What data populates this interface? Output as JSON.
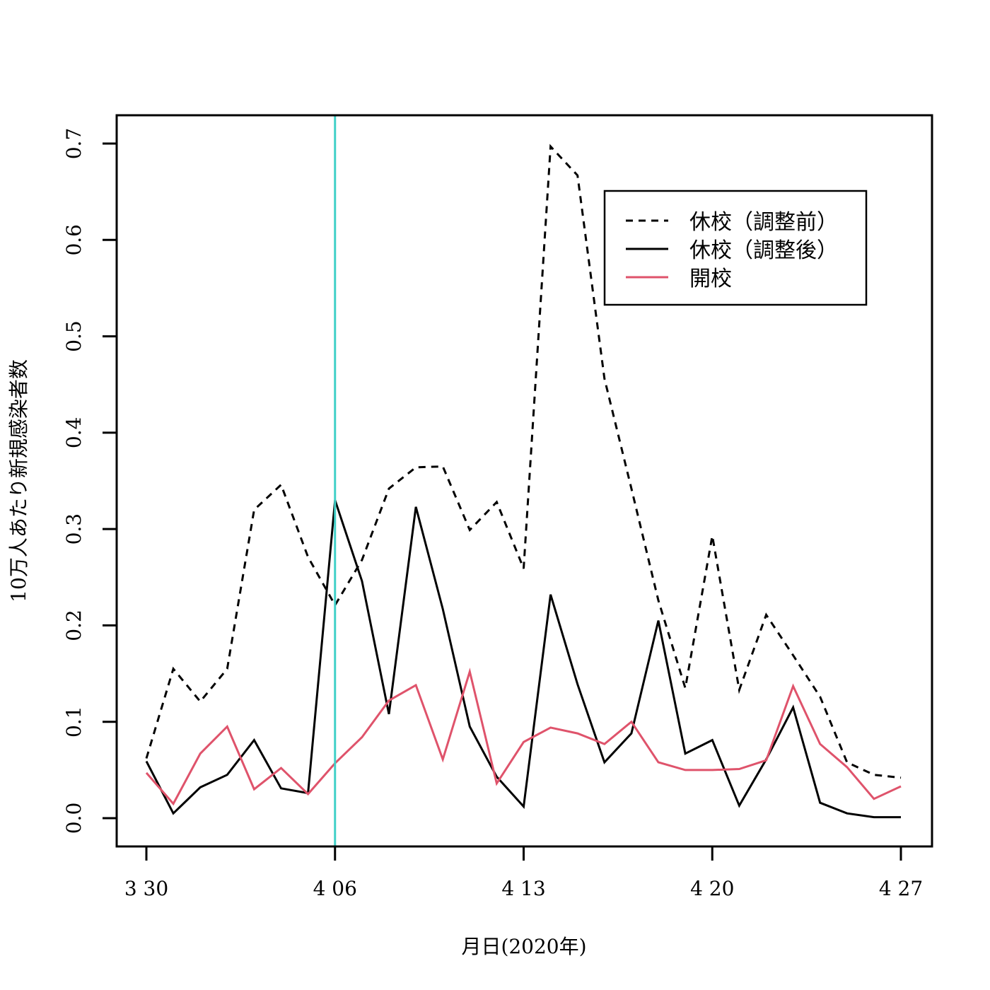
{
  "chart_data": {
    "type": "line",
    "title": "",
    "xlabel": "月日(2020年)",
    "ylabel": "10万人あたり新規感染者数",
    "x_start": "2020-03-30",
    "x_end": "2020-04-27",
    "xlim": [
      "2020-03-30",
      "2020-04-27"
    ],
    "ylim": [
      0,
      0.7
    ],
    "x_ticks": [
      {
        "date": "2020-03-30",
        "label": "3 30"
      },
      {
        "date": "2020-04-06",
        "label": "4 06"
      },
      {
        "date": "2020-04-13",
        "label": "4 13"
      },
      {
        "date": "2020-04-20",
        "label": "4 20"
      },
      {
        "date": "2020-04-27",
        "label": "4 27"
      }
    ],
    "y_ticks": [
      "0.0",
      "0.1",
      "0.2",
      "0.3",
      "0.4",
      "0.5",
      "0.6",
      "0.7"
    ],
    "grid": false,
    "legend_position": "top-right",
    "reference_line": {
      "date": "2020-04-06",
      "color": "#40d0c8"
    },
    "series": [
      {
        "name": "休校（調整前）",
        "color": "#000000",
        "dash": "dashed",
        "values": [
          0.062,
          0.155,
          0.121,
          0.155,
          0.32,
          0.346,
          0.271,
          0.221,
          0.268,
          0.342,
          0.364,
          0.365,
          0.299,
          0.328,
          0.259,
          0.697,
          0.667,
          0.456,
          0.342,
          0.226,
          0.135,
          0.293,
          0.133,
          0.211,
          0.169,
          0.126,
          0.058,
          0.045,
          0.042
        ]
      },
      {
        "name": "休校（調整後）",
        "color": "#000000",
        "dash": "solid",
        "values": [
          0.059,
          0.005,
          0.032,
          0.045,
          0.081,
          0.031,
          0.026,
          0.33,
          0.246,
          0.108,
          0.323,
          0.217,
          0.095,
          0.043,
          0.012,
          0.232,
          0.139,
          0.058,
          0.088,
          0.205,
          0.067,
          0.081,
          0.013,
          0.061,
          0.115,
          0.016,
          0.005,
          0.001,
          0.001
        ]
      },
      {
        "name": "開校",
        "color": "#df536b",
        "dash": "solid",
        "values": [
          0.047,
          0.015,
          0.067,
          0.095,
          0.03,
          0.052,
          0.025,
          0.057,
          0.084,
          0.122,
          0.138,
          0.061,
          0.152,
          0.036,
          0.079,
          0.094,
          0.088,
          0.077,
          0.1,
          0.058,
          0.05,
          0.05,
          0.051,
          0.06,
          0.137,
          0.077,
          0.053,
          0.02,
          0.033
        ]
      }
    ]
  }
}
